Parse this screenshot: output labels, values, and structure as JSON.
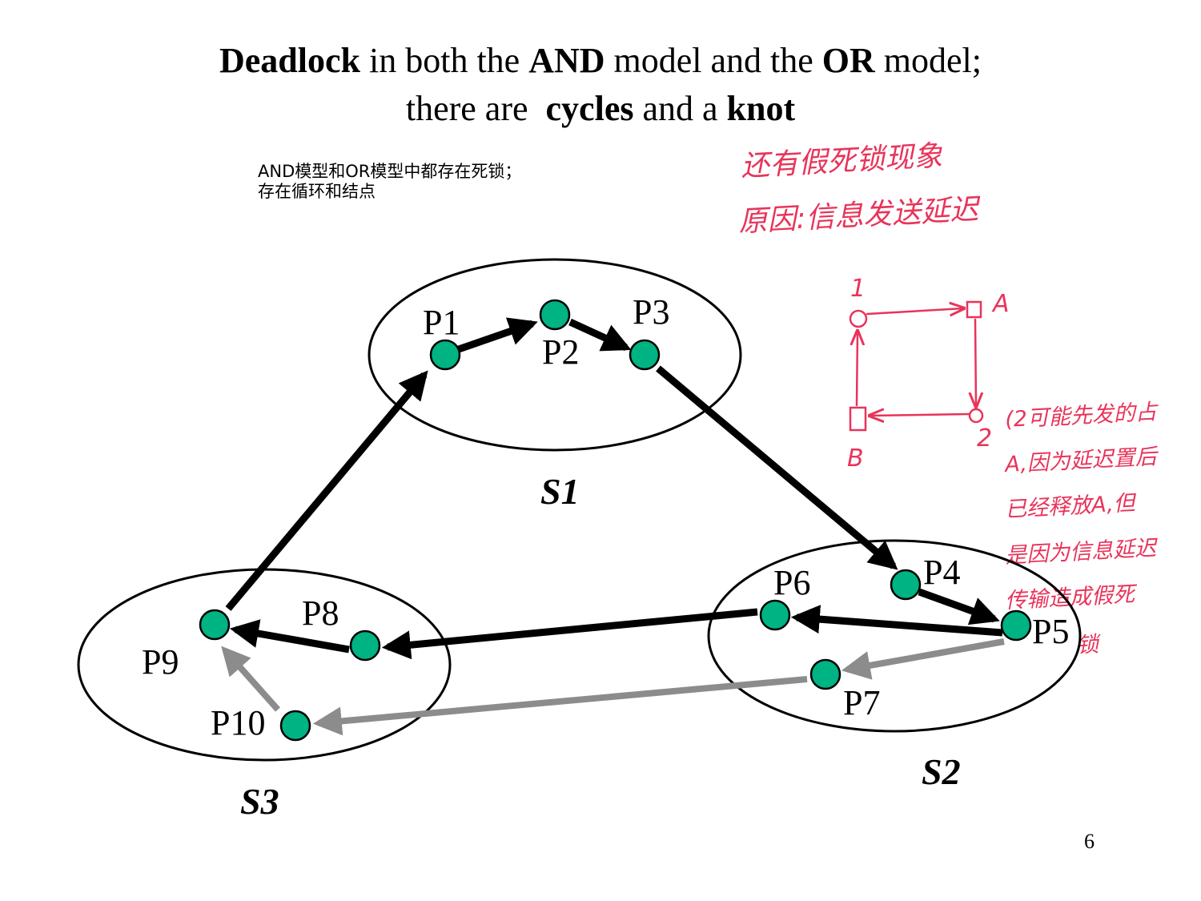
{
  "title": {
    "line1": [
      {
        "text": "Deadlock",
        "bold": true
      },
      {
        "text": " in both the ",
        "bold": false
      },
      {
        "text": "AND",
        "bold": true
      },
      {
        "text": " model and the ",
        "bold": false
      },
      {
        "text": "OR",
        "bold": true
      },
      {
        "text": " model;",
        "bold": false
      }
    ],
    "line2": [
      {
        "text": "there are  ",
        "bold": false
      },
      {
        "text": "cycles",
        "bold": true
      },
      {
        "text": " and a ",
        "bold": false
      },
      {
        "text": "knot",
        "bold": true
      }
    ]
  },
  "chinese_caption": {
    "line1": "AND模型和OR模型中都存在死锁；",
    "line2": "存在循环和结点"
  },
  "annotations": {
    "note1": "还有假死锁现象",
    "note2": "原因:信息发送延迟",
    "side_lines": [
      "(2可能先发的占",
      "A,因为延迟置后",
      "已经释放A,但",
      "是因为信息延迟",
      "传输造成假死",
      "锁"
    ]
  },
  "sketch": {
    "node1": "1",
    "nodeA": "A",
    "nodeB": "B",
    "node2": "2"
  },
  "sites": {
    "s1": "S1",
    "s2": "S2",
    "s3": "S3"
  },
  "processes": {
    "p1": "P1",
    "p2": "P2",
    "p3": "P3",
    "p4": "P4",
    "p5": "P5",
    "p6": "P6",
    "p7": "P7",
    "p8": "P8",
    "p9": "P9",
    "p10": "P10"
  },
  "colors": {
    "node": "#00b383",
    "gray_edge": "#8c8c8c",
    "black_edge": "#000000",
    "annotation": "#e8345a"
  },
  "page_number": "6"
}
